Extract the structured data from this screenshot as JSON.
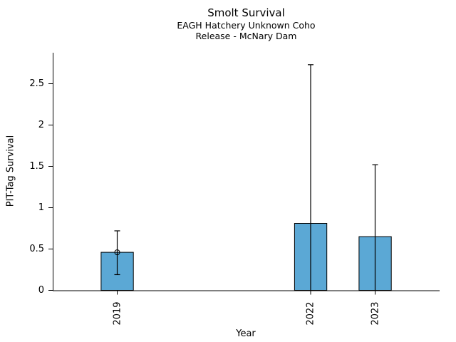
{
  "chart_data": {
    "type": "bar",
    "title": "Smolt Survival",
    "subtitle": [
      "EAGH Hatchery Unknown Coho",
      "Release - McNary Dam"
    ],
    "xlabel": "Year",
    "ylabel": "PIT-Tag Survival",
    "categories": [
      "2019",
      "2022",
      "2023"
    ],
    "x": [
      2019,
      2022,
      2023
    ],
    "values": [
      0.46,
      0.81,
      0.65
    ],
    "error_low": [
      0.19,
      0,
      0
    ],
    "error_high": [
      0.72,
      2.73,
      1.52
    ],
    "markers": [
      {
        "x": 2019,
        "y": 0.46,
        "shape": "open-circle"
      }
    ],
    "xlim": [
      2018,
      2024
    ],
    "ylim": [
      0,
      2.875
    ],
    "yticks": [
      0,
      0.5,
      1,
      1.5,
      2,
      2.5
    ],
    "xticks": [
      2019,
      2022,
      2023
    ],
    "grid": false,
    "legend": "none",
    "bar_width_years": 0.5,
    "bar_color": "#5BA8D5",
    "bar_edge_color": "#000000",
    "error_bar_color": "#000000",
    "marker_stroke_color": "#000000",
    "axis_color": "#000000",
    "background_color": "#FFFFFF"
  }
}
